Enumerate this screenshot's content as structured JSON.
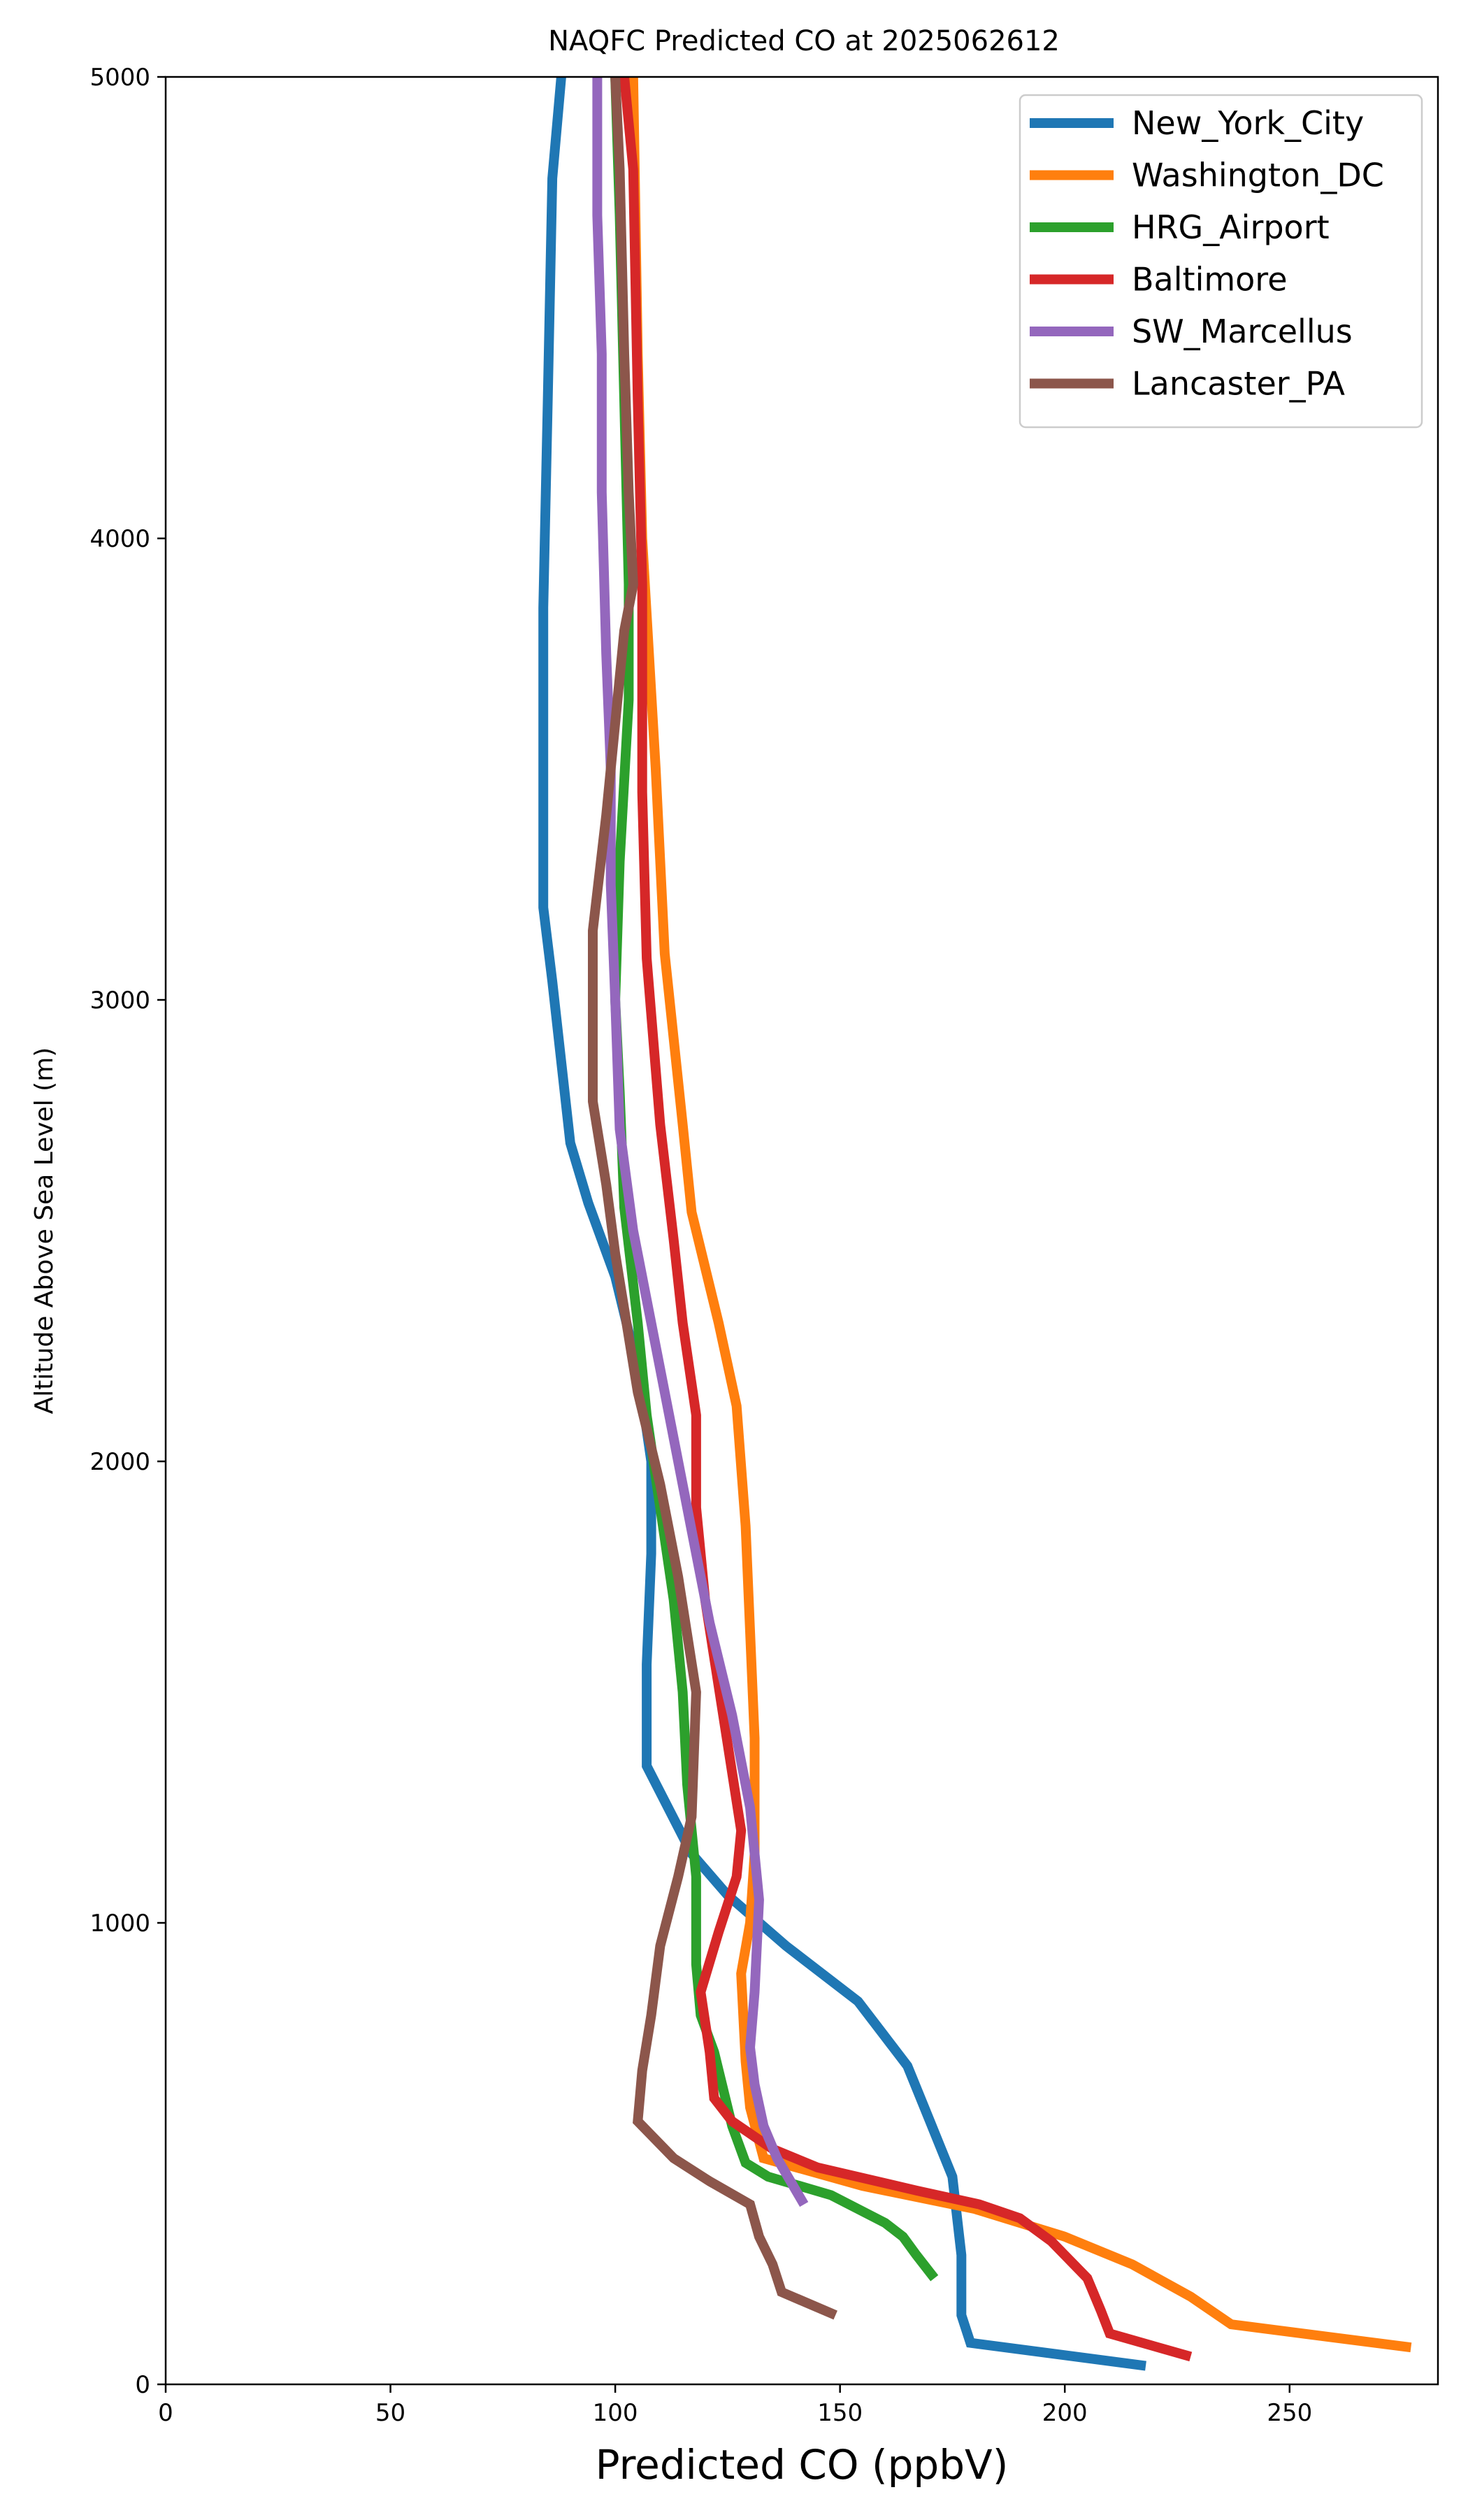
{
  "chart_data": {
    "type": "line",
    "title": "NAQFC Predicted CO at 2025062612",
    "xlabel": "Predicted CO (ppbV)",
    "ylabel": "Altitude Above Sea Level (m)",
    "xlim": [
      0,
      283
    ],
    "ylim": [
      0,
      5000
    ],
    "xticks": [
      0,
      50,
      100,
      150,
      200,
      250
    ],
    "yticks": [
      0,
      1000,
      2000,
      3000,
      4000,
      5000
    ],
    "grid": false,
    "legend_position": "top-right",
    "series": [
      {
        "name": "New_York_City",
        "color": "#1f77b4",
        "points": [
          [
            218,
            40
          ],
          [
            179,
            90
          ],
          [
            177,
            150
          ],
          [
            177,
            280
          ],
          [
            175,
            450
          ],
          [
            170,
            570
          ],
          [
            165,
            690
          ],
          [
            154,
            830
          ],
          [
            138,
            950
          ],
          [
            125,
            1060
          ],
          [
            117,
            1150
          ],
          [
            107,
            1340
          ],
          [
            107,
            1560
          ],
          [
            108,
            1800
          ],
          [
            108,
            2000
          ],
          [
            105,
            2200
          ],
          [
            100,
            2400
          ],
          [
            94,
            2560
          ],
          [
            90,
            2690
          ],
          [
            86,
            3040
          ],
          [
            84,
            3200
          ],
          [
            84,
            3850
          ],
          [
            85,
            4300
          ],
          [
            86,
            4780
          ],
          [
            88,
            5000
          ]
        ]
      },
      {
        "name": "Washington_DC",
        "color": "#ff7f0e",
        "points": [
          [
            277,
            80
          ],
          [
            237,
            130
          ],
          [
            228,
            190
          ],
          [
            215,
            260
          ],
          [
            200,
            320
          ],
          [
            180,
            380
          ],
          [
            155,
            430
          ],
          [
            133,
            490
          ],
          [
            130,
            600
          ],
          [
            129,
            700
          ],
          [
            128,
            890
          ],
          [
            130,
            1000
          ],
          [
            131,
            1150
          ],
          [
            131,
            1400
          ],
          [
            129,
            1860
          ],
          [
            127,
            2120
          ],
          [
            123,
            2300
          ],
          [
            117,
            2540
          ],
          [
            115,
            2730
          ],
          [
            111,
            3100
          ],
          [
            109,
            3500
          ],
          [
            106,
            4000
          ],
          [
            105,
            4400
          ],
          [
            104,
            5000
          ]
        ]
      },
      {
        "name": "HRG_Airport",
        "color": "#2ca02c",
        "points": [
          [
            171,
            230
          ],
          [
            167,
            280
          ],
          [
            164,
            320
          ],
          [
            160,
            350
          ],
          [
            148,
            410
          ],
          [
            134,
            450
          ],
          [
            129,
            480
          ],
          [
            126,
            560
          ],
          [
            122,
            720
          ],
          [
            119,
            800
          ],
          [
            118,
            910
          ],
          [
            118,
            1100
          ],
          [
            116,
            1300
          ],
          [
            115,
            1500
          ],
          [
            113,
            1700
          ],
          [
            110,
            1900
          ],
          [
            107,
            2100
          ],
          [
            105,
            2300
          ],
          [
            102,
            2550
          ],
          [
            101,
            2800
          ],
          [
            100,
            3000
          ],
          [
            101,
            3300
          ],
          [
            103,
            3650
          ],
          [
            103,
            3900
          ],
          [
            102,
            4300
          ],
          [
            101,
            4700
          ],
          [
            100,
            5000
          ]
        ]
      },
      {
        "name": "Baltimore",
        "color": "#d62728",
        "points": [
          [
            228,
            60
          ],
          [
            210,
            110
          ],
          [
            208,
            160
          ],
          [
            205,
            230
          ],
          [
            197,
            310
          ],
          [
            190,
            360
          ],
          [
            181,
            390
          ],
          [
            167,
            420
          ],
          [
            145,
            470
          ],
          [
            135,
            510
          ],
          [
            126,
            570
          ],
          [
            122,
            620
          ],
          [
            121,
            720
          ],
          [
            119,
            850
          ],
          [
            123,
            980
          ],
          [
            127,
            1100
          ],
          [
            128,
            1200
          ],
          [
            124,
            1450
          ],
          [
            120,
            1700
          ],
          [
            118,
            1900
          ],
          [
            118,
            2100
          ],
          [
            115,
            2300
          ],
          [
            113,
            2480
          ],
          [
            110,
            2730
          ],
          [
            107,
            3090
          ],
          [
            106,
            3450
          ],
          [
            106,
            3900
          ],
          [
            105,
            4300
          ],
          [
            104,
            4800
          ],
          [
            102,
            5000
          ]
        ]
      },
      {
        "name": "SW_Marcellus",
        "color": "#9467bd",
        "points": [
          [
            142,
            390
          ],
          [
            139,
            440
          ],
          [
            136,
            490
          ],
          [
            133,
            560
          ],
          [
            131,
            650
          ],
          [
            130,
            730
          ],
          [
            131,
            850
          ],
          [
            132,
            1050
          ],
          [
            130,
            1250
          ],
          [
            126,
            1450
          ],
          [
            121,
            1650
          ],
          [
            117,
            1850
          ],
          [
            113,
            2050
          ],
          [
            109,
            2250
          ],
          [
            104,
            2500
          ],
          [
            101,
            2720
          ],
          [
            100,
            3000
          ],
          [
            99,
            3250
          ],
          [
            99,
            3500
          ],
          [
            98,
            3750
          ],
          [
            97,
            4100
          ],
          [
            97,
            4400
          ],
          [
            96,
            4700
          ],
          [
            96,
            5000
          ]
        ]
      },
      {
        "name": "Lancaster_PA",
        "color": "#8c564b",
        "points": [
          [
            149,
            150
          ],
          [
            137,
            200
          ],
          [
            135,
            260
          ],
          [
            132,
            320
          ],
          [
            130,
            390
          ],
          [
            121,
            440
          ],
          [
            113,
            490
          ],
          [
            105,
            570
          ],
          [
            106,
            680
          ],
          [
            108,
            800
          ],
          [
            110,
            950
          ],
          [
            114,
            1100
          ],
          [
            117,
            1230
          ],
          [
            118,
            1500
          ],
          [
            114,
            1750
          ],
          [
            110,
            1950
          ],
          [
            105,
            2150
          ],
          [
            100,
            2450
          ],
          [
            98,
            2600
          ],
          [
            95,
            2780
          ],
          [
            95,
            3150
          ],
          [
            98,
            3400
          ],
          [
            100,
            3600
          ],
          [
            102,
            3800
          ],
          [
            104,
            3900
          ],
          [
            103,
            4100
          ],
          [
            102,
            4400
          ],
          [
            101,
            4800
          ],
          [
            100,
            5000
          ]
        ]
      }
    ]
  }
}
